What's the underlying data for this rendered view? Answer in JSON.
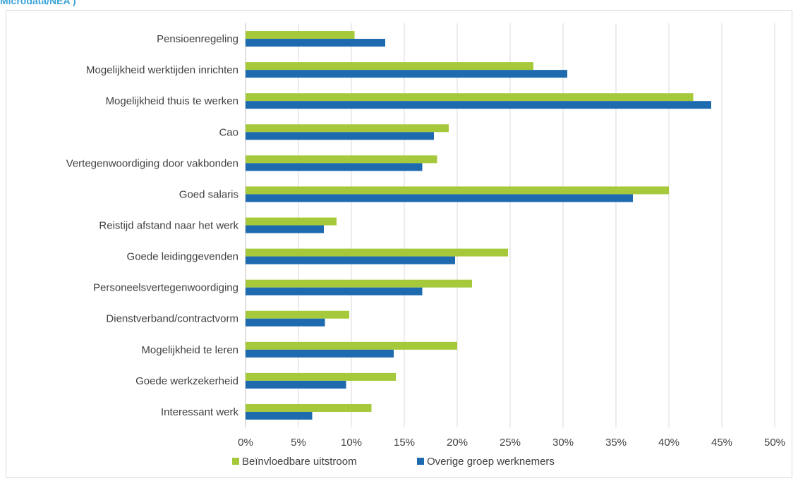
{
  "header": {
    "title": "Microdata/NEA )"
  },
  "colors": {
    "series1": "#a5c93a",
    "series2": "#1d6aaf",
    "grid": "#d9d9d9",
    "text": "#404040"
  },
  "chart_data": {
    "type": "bar",
    "orientation": "horizontal",
    "title": "",
    "xlabel": "",
    "ylabel": "",
    "xlim": [
      0,
      50
    ],
    "x_ticks": [
      "0%",
      "5%",
      "10%",
      "15%",
      "20%",
      "25%",
      "30%",
      "35%",
      "40%",
      "45%",
      "50%"
    ],
    "grid": true,
    "legend_position": "bottom",
    "categories": [
      "Pensioenregeling",
      "Mogelijkheid werktijden inrichten",
      "Mogelijkheid thuis te werken",
      "Cao",
      "Vertegenwoordiging door vakbonden",
      "Goed salaris",
      "Reistijd afstand naar het werk",
      "Goede leidinggevenden",
      "Personeelsvertegenwoordiging",
      "Dienstverband/contractvorm",
      "Mogelijkheid te leren",
      "Goede werkzekerheid",
      "Interessant werk"
    ],
    "series": [
      {
        "name": "Beïnvloedbare uitstroom",
        "values": [
          10.3,
          27.2,
          42.3,
          19.2,
          18.1,
          40.0,
          8.6,
          24.8,
          21.4,
          9.8,
          20.0,
          14.2,
          11.9
        ]
      },
      {
        "name": "Overige groep werknemers",
        "values": [
          13.2,
          30.4,
          44.0,
          17.8,
          16.7,
          36.6,
          7.4,
          19.8,
          16.7,
          7.5,
          14.0,
          9.5,
          6.3
        ]
      }
    ]
  }
}
